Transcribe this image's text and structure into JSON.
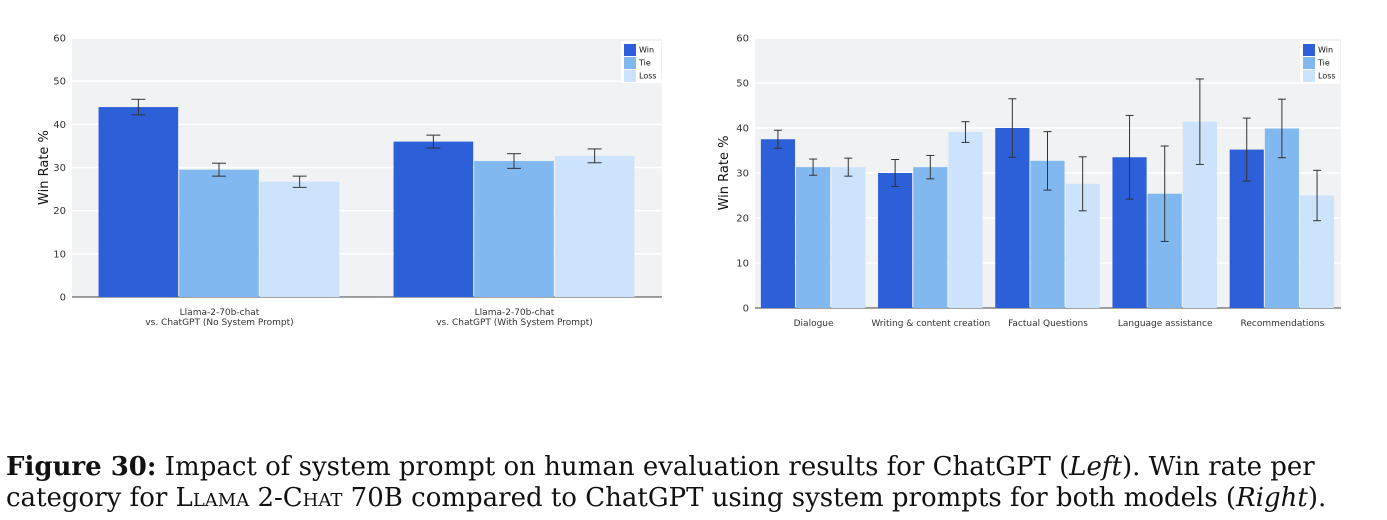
{
  "colors": {
    "win": "#2c5fd8",
    "tie": "#82b8f0",
    "loss": "#cce3fb",
    "plot_bg": "#f1f2f3",
    "grid": "#ffffff"
  },
  "chart_data": [
    {
      "type": "bar",
      "ylabel": "Win Rate %",
      "ylim": [
        0,
        60
      ],
      "yticks": [
        0,
        10,
        20,
        30,
        40,
        50,
        60
      ],
      "grid": true,
      "legend_position": "top-right",
      "categories": [
        [
          "Llama-2-70b-chat",
          "vs. ChatGPT (No System Prompt)"
        ],
        [
          "Llama-2-70b-chat",
          "vs. ChatGPT (With System Prompt)"
        ]
      ],
      "series": [
        {
          "name": "Win",
          "values": [
            44.0,
            36.0
          ],
          "errors": [
            1.8,
            1.5
          ]
        },
        {
          "name": "Tie",
          "values": [
            29.5,
            31.5
          ],
          "errors": [
            1.5,
            1.7
          ]
        },
        {
          "name": "Loss",
          "values": [
            26.7,
            32.7
          ],
          "errors": [
            1.3,
            1.6
          ]
        }
      ]
    },
    {
      "type": "bar",
      "ylabel": "Win Rate %",
      "ylim": [
        0,
        60
      ],
      "yticks": [
        0,
        10,
        20,
        30,
        40,
        50,
        60
      ],
      "grid": true,
      "legend_position": "top-right",
      "categories": [
        [
          "Dialogue"
        ],
        [
          "Writing & content creation"
        ],
        [
          "Factual Questions"
        ],
        [
          "Language assistance"
        ],
        [
          "Recommendations"
        ]
      ],
      "series": [
        {
          "name": "Win",
          "values": [
            37.5,
            30.0,
            40.0,
            33.5,
            35.2
          ],
          "errors": [
            2.0,
            3.0,
            6.5,
            9.3,
            7.0
          ]
        },
        {
          "name": "Tie",
          "values": [
            31.3,
            31.3,
            32.7,
            25.4,
            39.9
          ],
          "errors": [
            1.8,
            2.6,
            6.5,
            10.6,
            6.5
          ]
        },
        {
          "name": "Loss",
          "values": [
            31.3,
            39.1,
            27.6,
            41.4,
            25.0
          ],
          "errors": [
            2.0,
            2.3,
            6.0,
            9.5,
            5.6
          ]
        }
      ]
    }
  ],
  "caption": {
    "label": "Figure 30:",
    "text1": " Impact of system prompt on human evaluation results for ChatGPT (",
    "left_word": "Left",
    "text2": "). Win rate per category for ",
    "model_name": "Llama 2-Chat",
    "text3": " 70B compared to ChatGPT using system prompts for both models (",
    "right_word": "Right",
    "text4": ")."
  }
}
